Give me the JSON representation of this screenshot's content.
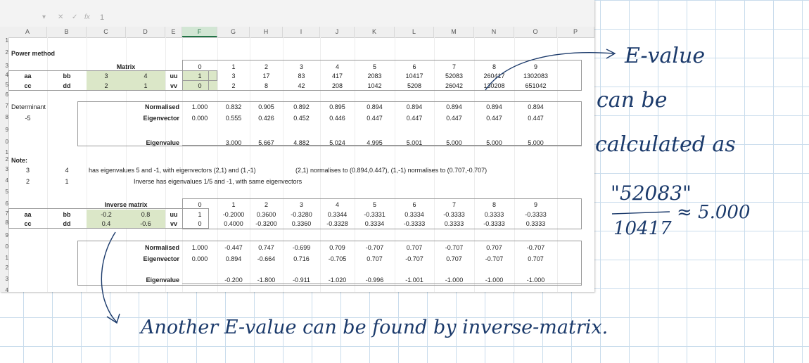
{
  "formula_bar": {
    "value": "1"
  },
  "columns": [
    "A",
    "B",
    "C",
    "D",
    "E",
    "F",
    "G",
    "H",
    "I",
    "J",
    "K",
    "L",
    "M",
    "N",
    "O",
    "P"
  ],
  "row_labels": [
    "1",
    "2",
    "3",
    "4",
    "5",
    "6",
    "7",
    "8",
    "9",
    "0",
    "1",
    "2",
    "3",
    "4",
    "5",
    "6",
    "7",
    "8",
    "9",
    "0",
    "1",
    "2",
    "3",
    "4"
  ],
  "sheet": {
    "title": "Power method",
    "matrix_header": "Matrix",
    "inverse_header": "Inverse matrix",
    "iter_index": [
      "0",
      "1",
      "2",
      "3",
      "4",
      "5",
      "6",
      "7",
      "8",
      "9"
    ],
    "matrix_rows": [
      {
        "a": "aa",
        "b": "bb",
        "c": "3",
        "d": "4",
        "e": "uu",
        "vals": [
          "1",
          "3",
          "17",
          "83",
          "417",
          "2083",
          "10417",
          "52083",
          "260417",
          "1302083"
        ]
      },
      {
        "a": "cc",
        "b": "dd",
        "c": "2",
        "d": "1",
        "e": "vv",
        "vals": [
          "0",
          "2",
          "8",
          "42",
          "208",
          "1042",
          "5208",
          "26042",
          "130208",
          "651042"
        ]
      }
    ],
    "determinant_label": "Determinant",
    "determinant_value": "-5",
    "normalised_label": "Normalised",
    "eigenvector_label": "Eigenvector",
    "eigenvalue_label": "Eigenvalue",
    "norm1": [
      "1.000",
      "0.832",
      "0.905",
      "0.892",
      "0.895",
      "0.894",
      "0.894",
      "0.894",
      "0.894",
      "0.894"
    ],
    "eigvec1": [
      "0.000",
      "0.555",
      "0.426",
      "0.452",
      "0.446",
      "0.447",
      "0.447",
      "0.447",
      "0.447",
      "0.447"
    ],
    "eigval1": [
      "3.000",
      "5.667",
      "4.882",
      "5.024",
      "4.995",
      "5.001",
      "5.000",
      "5.000",
      "5.000"
    ],
    "note_label": "Note:",
    "note_rows": [
      {
        "a": "3",
        "b": "4"
      },
      {
        "a": "2",
        "b": "1"
      }
    ],
    "note_text1": "has eigenvalues 5 and -1, with eigenvectors (2,1) and (1,-1)",
    "note_text1b": "(2,1) normalises to (0.894,0.447), (1,-1) normalises to (0.707,-0.707)",
    "note_text2": "Inverse has eigenvalues 1/5 and -1, with same eigenvectors",
    "inverse_rows": [
      {
        "a": "aa",
        "b": "bb",
        "c": "-0.2",
        "d": "0.8",
        "e": "uu",
        "vals": [
          "1",
          "-0.2000",
          "0.3600",
          "-0.3280",
          "0.3344",
          "-0.3331",
          "0.3334",
          "-0.3333",
          "0.3333",
          "-0.3333"
        ]
      },
      {
        "a": "cc",
        "b": "dd",
        "c": "0.4",
        "d": "-0.6",
        "e": "vv",
        "vals": [
          "0",
          "0.4000",
          "-0.3200",
          "0.3360",
          "-0.3328",
          "0.3334",
          "-0.3333",
          "0.3333",
          "-0.3333",
          "0.3333"
        ]
      }
    ],
    "norm2": [
      "1.000",
      "-0.447",
      "0.747",
      "-0.699",
      "0.709",
      "-0.707",
      "0.707",
      "-0.707",
      "0.707",
      "-0.707"
    ],
    "eigvec2": [
      "0.000",
      "0.894",
      "-0.664",
      "0.716",
      "-0.705",
      "0.707",
      "-0.707",
      "0.707",
      "-0.707",
      "0.707"
    ],
    "eigval2": [
      "-0.200",
      "-1.800",
      "-0.911",
      "-1.020",
      "-0.996",
      "-1.001",
      "-1.000",
      "-1.000",
      "-1.000"
    ]
  },
  "annotations": {
    "right_lines": [
      "E-value",
      "can be",
      "calculated as"
    ],
    "fraction_num": "\"52083\"",
    "fraction_den": "10417",
    "approx": "≈ 5.000",
    "bottom": "Another E-value can be found by inverse-matrix."
  },
  "colors": {
    "ink": "#1b3a6b",
    "green_fill": "#dbe7c8",
    "grid": "#c9dcec"
  }
}
